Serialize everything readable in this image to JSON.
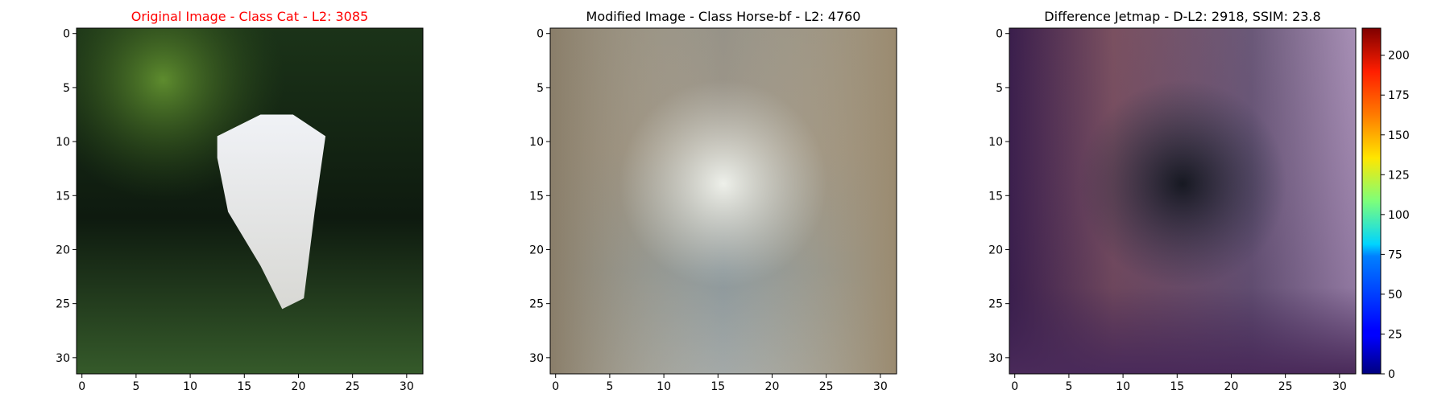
{
  "figure": {
    "panels": [
      {
        "title": "Original Image - Class Cat - L2: 3085",
        "title_color": "#ff0000",
        "x_ticks": [
          0,
          5,
          10,
          15,
          20,
          25,
          30
        ],
        "y_ticks": [
          0,
          5,
          10,
          15,
          20,
          25,
          30
        ],
        "image_extent": [
          32,
          32
        ]
      },
      {
        "title": "Modified Image - Class Horse-bf - L2: 4760",
        "title_color": "#000000",
        "x_ticks": [
          0,
          5,
          10,
          15,
          20,
          25,
          30
        ],
        "y_ticks": [
          0,
          5,
          10,
          15,
          20,
          25,
          30
        ],
        "image_extent": [
          32,
          32
        ]
      },
      {
        "title": "Difference Jetmap - D-L2: 2918, SSIM: 23.8",
        "title_color": "#000000",
        "x_ticks": [
          0,
          5,
          10,
          15,
          20,
          25,
          30
        ],
        "y_ticks": [
          0,
          5,
          10,
          15,
          20,
          25,
          30
        ],
        "image_extent": [
          32,
          32
        ]
      }
    ],
    "colorbar": {
      "colormap": "jet",
      "range": [
        0,
        217
      ],
      "ticks": [
        0,
        25,
        50,
        75,
        100,
        125,
        150,
        175,
        200
      ]
    }
  }
}
